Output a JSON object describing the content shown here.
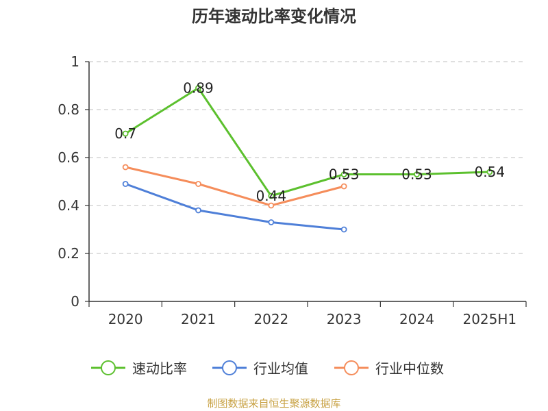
{
  "source_note": "制图数据来自恒生聚源数据库",
  "chart_data": {
    "type": "line",
    "title": "历年速动比率变化情况",
    "categories": [
      "2020",
      "2021",
      "2022",
      "2023",
      "2024",
      "2025H1"
    ],
    "ylim": [
      0,
      1
    ],
    "yticks": [
      0,
      0.2,
      0.4,
      0.6,
      0.8,
      1
    ],
    "grid": true,
    "legend_position": "bottom",
    "series": [
      {
        "name": "速动比率",
        "color": "#5cc02e",
        "values": [
          0.7,
          0.89,
          0.44,
          0.53,
          0.53,
          0.54
        ],
        "labels": [
          "0.7",
          "0.89",
          "0.44",
          "0.53",
          "0.53",
          "0.54"
        ]
      },
      {
        "name": "行业均值",
        "color": "#4e7fd8",
        "values": [
          0.49,
          0.38,
          0.33,
          0.3,
          null,
          null
        ]
      },
      {
        "name": "行业中位数",
        "color": "#f58d5b",
        "values": [
          0.56,
          0.49,
          0.4,
          0.48,
          null,
          null
        ]
      }
    ]
  }
}
